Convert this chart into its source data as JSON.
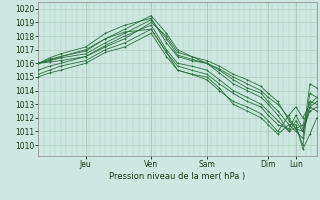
{
  "bg_color": "#cce8e0",
  "grid_color": "#aaccbb",
  "line_color": "#2d6e3e",
  "xlabel_text": "Pression niveau de la mer( hPa )",
  "x_tick_labels": [
    "Jeu",
    "Ven",
    "Sam",
    "Dim",
    "Lun"
  ],
  "x_tick_positions": [
    0.17,
    0.405,
    0.605,
    0.825,
    0.925
  ],
  "ylim": [
    1009.2,
    1020.5
  ],
  "xlim_data": [
    0.0,
    1.0
  ],
  "yticks": [
    1010,
    1011,
    1012,
    1013,
    1014,
    1015,
    1016,
    1017,
    1018,
    1019,
    1020
  ],
  "series": [
    [
      0.0,
      1016.0,
      0.04,
      1016.1,
      0.08,
      1016.2,
      0.17,
      1016.5,
      0.24,
      1017.2,
      0.31,
      1017.8,
      0.405,
      1019.0,
      0.46,
      1018.0,
      0.5,
      1016.8,
      0.55,
      1016.5,
      0.605,
      1016.2,
      0.65,
      1015.8,
      0.7,
      1015.2,
      0.75,
      1014.8,
      0.8,
      1014.3,
      0.825,
      1013.8,
      0.86,
      1013.2,
      0.9,
      1011.8,
      0.925,
      1011.2,
      0.95,
      1011.0,
      0.975,
      1012.8,
      1.0,
      1012.5
    ],
    [
      0.0,
      1016.0,
      0.04,
      1016.2,
      0.08,
      1016.4,
      0.17,
      1016.7,
      0.24,
      1017.5,
      0.31,
      1018.2,
      0.405,
      1019.2,
      0.46,
      1017.8,
      0.5,
      1016.6,
      0.55,
      1016.3,
      0.605,
      1016.0,
      0.65,
      1015.6,
      0.7,
      1015.0,
      0.75,
      1014.5,
      0.8,
      1014.0,
      0.825,
      1013.5,
      0.86,
      1013.0,
      0.9,
      1012.0,
      0.925,
      1011.2,
      0.95,
      1011.5,
      0.975,
      1013.2,
      1.0,
      1013.0
    ],
    [
      0.0,
      1016.0,
      0.04,
      1016.3,
      0.08,
      1016.5,
      0.17,
      1016.9,
      0.24,
      1017.8,
      0.31,
      1018.5,
      0.405,
      1019.5,
      0.46,
      1018.2,
      0.5,
      1017.0,
      0.55,
      1016.5,
      0.605,
      1016.0,
      0.65,
      1015.5,
      0.7,
      1014.8,
      0.75,
      1014.2,
      0.8,
      1013.8,
      0.825,
      1013.2,
      0.86,
      1012.5,
      0.9,
      1011.5,
      0.925,
      1011.0,
      0.95,
      1010.5,
      0.975,
      1014.5,
      1.0,
      1014.2
    ],
    [
      0.0,
      1016.0,
      0.04,
      1016.4,
      0.08,
      1016.7,
      0.17,
      1017.2,
      0.24,
      1018.2,
      0.31,
      1018.8,
      0.405,
      1019.3,
      0.46,
      1017.5,
      0.5,
      1016.5,
      0.55,
      1016.2,
      0.605,
      1016.0,
      0.65,
      1015.3,
      0.7,
      1014.5,
      0.75,
      1014.0,
      0.8,
      1013.5,
      0.825,
      1013.0,
      0.86,
      1012.2,
      0.9,
      1011.0,
      0.925,
      1011.3,
      0.95,
      1010.0,
      0.975,
      1013.8,
      1.0,
      1013.5
    ],
    [
      0.0,
      1015.5,
      0.04,
      1015.8,
      0.08,
      1016.0,
      0.17,
      1016.5,
      0.24,
      1017.3,
      0.31,
      1018.0,
      0.405,
      1018.8,
      0.46,
      1017.0,
      0.5,
      1016.0,
      0.55,
      1015.8,
      0.605,
      1015.5,
      0.65,
      1014.8,
      0.7,
      1014.0,
      0.75,
      1013.5,
      0.8,
      1013.0,
      0.825,
      1012.5,
      0.86,
      1011.8,
      0.9,
      1011.0,
      0.925,
      1011.8,
      0.95,
      1011.0,
      0.975,
      1012.5,
      1.0,
      1012.8
    ],
    [
      0.0,
      1015.2,
      0.04,
      1015.5,
      0.08,
      1015.8,
      0.17,
      1016.2,
      0.24,
      1017.0,
      0.31,
      1017.5,
      0.405,
      1018.5,
      0.46,
      1016.8,
      0.5,
      1015.8,
      0.55,
      1015.5,
      0.605,
      1015.2,
      0.65,
      1014.5,
      0.7,
      1013.8,
      0.75,
      1013.2,
      0.8,
      1012.8,
      0.825,
      1012.2,
      0.86,
      1011.5,
      0.9,
      1011.2,
      0.925,
      1012.2,
      0.95,
      1011.2,
      0.975,
      1012.8,
      1.0,
      1013.2
    ],
    [
      0.0,
      1015.0,
      0.04,
      1015.3,
      0.08,
      1015.5,
      0.17,
      1016.0,
      0.24,
      1016.8,
      0.31,
      1017.2,
      0.405,
      1018.2,
      0.46,
      1016.5,
      0.5,
      1015.5,
      0.55,
      1015.2,
      0.605,
      1014.8,
      0.65,
      1014.0,
      0.7,
      1013.2,
      0.75,
      1012.8,
      0.8,
      1012.3,
      0.825,
      1011.8,
      0.86,
      1011.0,
      0.9,
      1012.2,
      0.925,
      1012.8,
      0.95,
      1012.0,
      0.975,
      1013.0,
      1.0,
      1013.5
    ],
    [
      0.0,
      1016.0,
      0.04,
      1016.2,
      0.08,
      1016.5,
      0.17,
      1017.0,
      0.24,
      1017.8,
      0.31,
      1018.3,
      0.405,
      1018.5,
      0.46,
      1016.8,
      0.5,
      1015.5,
      0.55,
      1015.2,
      0.605,
      1015.0,
      0.65,
      1014.2,
      0.7,
      1013.0,
      0.75,
      1012.5,
      0.8,
      1012.0,
      0.825,
      1011.5,
      0.86,
      1010.8,
      0.9,
      1011.5,
      0.925,
      1011.5,
      0.95,
      1009.7,
      0.975,
      1010.8,
      1.0,
      1012.0
    ]
  ]
}
